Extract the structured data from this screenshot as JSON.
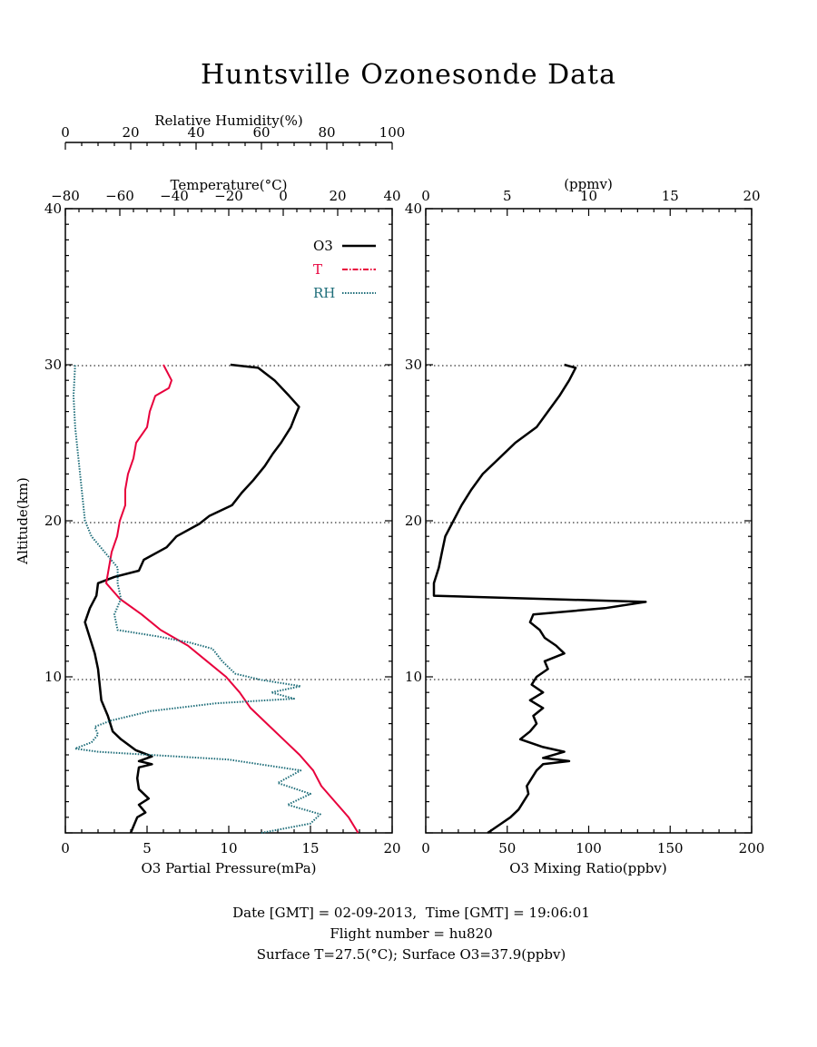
{
  "title": "Huntsville Ozonesonde Data",
  "colors": {
    "o3": "#000000",
    "temperature": "#e8003c",
    "rh": "#1f6e7a",
    "axis": "#000000"
  },
  "left_panel": {
    "xlabel_bottom": "O3 Partial Pressure(mPa)",
    "xlabel_top_temp": "Temperature(°C)",
    "xlabel_top_rh": "Relative Humidity(%)",
    "ylabel": "Altitude(km)",
    "bottom_ticks": [
      "0",
      "5",
      "10",
      "15",
      "20"
    ],
    "temp_ticks": [
      "−80",
      "−60",
      "−40",
      "−20",
      "0",
      "20",
      "40"
    ],
    "rh_ticks": [
      "0",
      "20",
      "40",
      "60",
      "80",
      "100"
    ],
    "y_ticks": [
      "10",
      "20",
      "30",
      "40"
    ],
    "legend": [
      {
        "name": "O3",
        "style": "solid"
      },
      {
        "name": "T",
        "style": "dashdot"
      },
      {
        "name": "RH",
        "style": "dotted"
      }
    ]
  },
  "right_panel": {
    "xlabel_bottom": "O3 Mixing Ratio(ppbv)",
    "xlabel_top": "(ppmv)",
    "bottom_ticks": [
      "0",
      "50",
      "100",
      "150",
      "200"
    ],
    "top_ticks": [
      "0",
      "5",
      "10",
      "15",
      "20"
    ],
    "y_ticks": [
      "10",
      "20",
      "30",
      "40"
    ]
  },
  "footer": {
    "line1": "Date [GMT] = 02-09-2013,  Time [GMT] = 19:06:01",
    "line2": "Flight number = hu820",
    "line3": "Surface T=27.5(°C); Surface O3=37.9(ppbv)"
  },
  "chart_data": [
    {
      "type": "line",
      "panel": "left",
      "title": "Huntsville Ozonesonde Data",
      "ylabel": "Altitude(km)",
      "ylim": [
        0,
        40
      ],
      "grid": "dotted horizontal lines at 10, 20, 30 km",
      "legend_position": "top-right",
      "series": [
        {
          "name": "O3",
          "axis": "O3 Partial Pressure(mPa)",
          "xlim": [
            0,
            20
          ],
          "points": [
            [
              4.0,
              0
            ],
            [
              4.2,
              0.5
            ],
            [
              4.4,
              1
            ],
            [
              4.9,
              1.3
            ],
            [
              4.5,
              1.8
            ],
            [
              5.1,
              2.2
            ],
            [
              4.5,
              2.8
            ],
            [
              4.4,
              3.5
            ],
            [
              4.5,
              4.2
            ],
            [
              5.3,
              4.4
            ],
            [
              4.5,
              4.6
            ],
            [
              5.3,
              4.9
            ],
            [
              4.3,
              5.3
            ],
            [
              3.4,
              6.0
            ],
            [
              2.9,
              6.5
            ],
            [
              2.6,
              7.5
            ],
            [
              2.2,
              8.5
            ],
            [
              2.1,
              9.5
            ],
            [
              2.0,
              10.5
            ],
            [
              1.8,
              11.5
            ],
            [
              1.5,
              12.5
            ],
            [
              1.2,
              13.5
            ],
            [
              1.5,
              14.4
            ],
            [
              1.9,
              15.2
            ],
            [
              2.0,
              16.0
            ],
            [
              3.0,
              16.4
            ],
            [
              4.5,
              16.8
            ],
            [
              4.8,
              17.5
            ],
            [
              6.2,
              18.3
            ],
            [
              6.8,
              19.0
            ],
            [
              8.2,
              19.8
            ],
            [
              8.8,
              20.3
            ],
            [
              10.2,
              21.0
            ],
            [
              10.8,
              21.8
            ],
            [
              11.5,
              22.6
            ],
            [
              12.2,
              23.5
            ],
            [
              12.7,
              24.3
            ],
            [
              13.2,
              25.0
            ],
            [
              13.8,
              26.0
            ],
            [
              14.1,
              26.8
            ],
            [
              14.3,
              27.3
            ],
            [
              13.7,
              28.0
            ],
            [
              12.8,
              29.0
            ],
            [
              11.8,
              29.8
            ],
            [
              10.1,
              30.0
            ]
          ]
        },
        {
          "name": "T",
          "axis": "Temperature(°C)",
          "xlim": [
            -80,
            40
          ],
          "points": [
            [
              27.5,
              0
            ],
            [
              24,
              1
            ],
            [
              19,
              2
            ],
            [
              14,
              3
            ],
            [
              11,
              4
            ],
            [
              6,
              5
            ],
            [
              0,
              6
            ],
            [
              -6,
              7
            ],
            [
              -12,
              8
            ],
            [
              -16,
              9
            ],
            [
              -21,
              10
            ],
            [
              -28,
              11
            ],
            [
              -35,
              12
            ],
            [
              -45,
              13
            ],
            [
              -52,
              14
            ],
            [
              -60,
              15
            ],
            [
              -65,
              16
            ],
            [
              -64,
              17
            ],
            [
              -63,
              18
            ],
            [
              -61,
              19
            ],
            [
              -60,
              20
            ],
            [
              -58,
              21
            ],
            [
              -58,
              22
            ],
            [
              -57,
              23
            ],
            [
              -55,
              24
            ],
            [
              -54,
              25
            ],
            [
              -50,
              26
            ],
            [
              -49,
              27
            ],
            [
              -47,
              28
            ],
            [
              -42,
              28.5
            ],
            [
              -41,
              29
            ],
            [
              -44,
              30
            ]
          ]
        },
        {
          "name": "RH",
          "axis": "Relative Humidity(%)",
          "xlim": [
            0,
            100
          ],
          "points": [
            [
              60,
              0
            ],
            [
              75,
              0.6
            ],
            [
              78,
              1.2
            ],
            [
              68,
              1.8
            ],
            [
              75,
              2.5
            ],
            [
              65,
              3.2
            ],
            [
              72,
              4.0
            ],
            [
              50,
              4.7
            ],
            [
              10,
              5.2
            ],
            [
              3,
              5.4
            ],
            [
              8,
              5.8
            ],
            [
              10,
              6.3
            ],
            [
              9,
              6.8
            ],
            [
              14,
              7.2
            ],
            [
              26,
              7.8
            ],
            [
              46,
              8.3
            ],
            [
              70,
              8.6
            ],
            [
              63,
              9.0
            ],
            [
              72,
              9.4
            ],
            [
              60,
              9.8
            ],
            [
              52,
              10.2
            ],
            [
              48,
              11.0
            ],
            [
              45,
              11.8
            ],
            [
              38,
              12.2
            ],
            [
              28,
              12.6
            ],
            [
              16,
              13.0
            ],
            [
              15,
              14.0
            ],
            [
              17,
              15.0
            ],
            [
              16,
              16.0
            ],
            [
              16,
              17.0
            ],
            [
              12,
              18.0
            ],
            [
              8,
              19.0
            ],
            [
              6,
              20.0
            ],
            [
              5,
              22.0
            ],
            [
              4,
              24.0
            ],
            [
              3,
              26.0
            ],
            [
              2.5,
              28.0
            ],
            [
              3,
              30.0
            ]
          ]
        }
      ]
    },
    {
      "type": "line",
      "panel": "right",
      "xlabel": "O3 Mixing Ratio(ppbv)",
      "ylabel": "Altitude(km)",
      "xlim": [
        0,
        200
      ],
      "ylim": [
        0,
        40
      ],
      "series": [
        {
          "name": "O3 Mixing Ratio",
          "points": [
            [
              38,
              0
            ],
            [
              45,
              0.5
            ],
            [
              52,
              1
            ],
            [
              57,
              1.5
            ],
            [
              60,
              2.0
            ],
            [
              63,
              2.5
            ],
            [
              62,
              3.0
            ],
            [
              65,
              3.5
            ],
            [
              68,
              4.0
            ],
            [
              72,
              4.4
            ],
            [
              88,
              4.6
            ],
            [
              72,
              4.8
            ],
            [
              85,
              5.2
            ],
            [
              72,
              5.5
            ],
            [
              58,
              6.0
            ],
            [
              64,
              6.5
            ],
            [
              68,
              7.0
            ],
            [
              66,
              7.5
            ],
            [
              72,
              8.0
            ],
            [
              64,
              8.5
            ],
            [
              72,
              9.0
            ],
            [
              65,
              9.5
            ],
            [
              68,
              10.0
            ],
            [
              75,
              10.5
            ],
            [
              73,
              11.0
            ],
            [
              85,
              11.5
            ],
            [
              80,
              12.0
            ],
            [
              73,
              12.5
            ],
            [
              70,
              13.0
            ],
            [
              64,
              13.5
            ],
            [
              66,
              14.0
            ],
            [
              110,
              14.4
            ],
            [
              135,
              14.8
            ],
            [
              5,
              15.2
            ],
            [
              5,
              16.0
            ],
            [
              8,
              17.0
            ],
            [
              10,
              18.0
            ],
            [
              12,
              19.0
            ],
            [
              17,
              20.0
            ],
            [
              22,
              21.0
            ],
            [
              28,
              22.0
            ],
            [
              35,
              23.0
            ],
            [
              45,
              24.0
            ],
            [
              55,
              25.0
            ],
            [
              68,
              26.0
            ],
            [
              75,
              27.0
            ],
            [
              82,
              28.0
            ],
            [
              88,
              29.0
            ],
            [
              92,
              29.8
            ],
            [
              85,
              30.0
            ]
          ]
        }
      ]
    }
  ]
}
